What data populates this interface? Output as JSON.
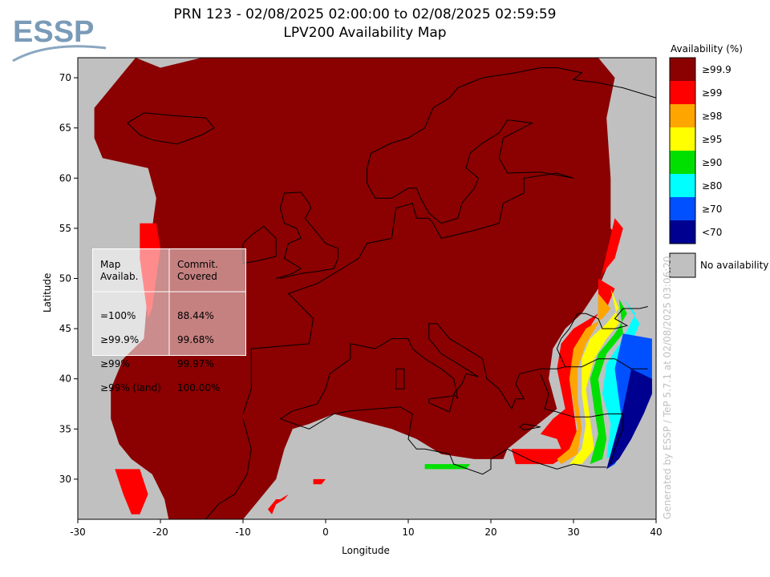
{
  "logo": {
    "text": "ESSP"
  },
  "title": {
    "line1": "PRN 123 - 02/08/2025 02:00:00 to 02/08/2025 02:59:59",
    "line2": "LPV200 Availability Map"
  },
  "watermark": "Generated by ESSP / TeP 5.7.1 at 02/08/2025 03:06:20",
  "stats_table": {
    "col1_header": "Map\nAvailab.",
    "col2_header": "Commit.\nCovered",
    "rows": [
      {
        "label": "=100%",
        "value": "88.44%"
      },
      {
        "label": "≥99.9%",
        "value": "99.68%"
      },
      {
        "label": "≥99%",
        "value": "99.97%"
      },
      {
        "label": "≥99% (land)",
        "value": "100.00%"
      }
    ]
  },
  "legend": {
    "title": "Availability (%)",
    "items": [
      {
        "label": "≥99.9",
        "color": "#8b0000"
      },
      {
        "label": "≥99",
        "color": "#ff0000"
      },
      {
        "label": "≥98",
        "color": "#ffa500"
      },
      {
        "label": "≥95",
        "color": "#ffff00"
      },
      {
        "label": "≥90",
        "color": "#00e000"
      },
      {
        "label": "≥80",
        "color": "#00ffff"
      },
      {
        "label": "≥70",
        "color": "#0050ff"
      },
      {
        "label": "<70",
        "color": "#000090"
      }
    ],
    "no_availability": {
      "label": "No availability",
      "color": "#c0c0c0"
    }
  },
  "chart_data": {
    "type": "heatmap",
    "title": "PRN 123 - 02/08/2025 02:00:00 to 02/08/2025 02:59:59",
    "subtitle": "LPV200 Availability Map",
    "xlabel": "Longitude",
    "ylabel": "Latitude",
    "xlim": [
      -30,
      40
    ],
    "ylim": [
      26,
      72
    ],
    "xticks": [
      -30,
      -20,
      -10,
      0,
      10,
      20,
      30,
      40
    ],
    "yticks": [
      30,
      35,
      40,
      45,
      50,
      55,
      60,
      65,
      70
    ],
    "dominant_value": "≥99.9",
    "regions": [
      {
        "category": "≥99.9",
        "lonlat": [
          [
            -23,
            72
          ],
          [
            -20,
            71
          ],
          [
            -15,
            72
          ],
          [
            33,
            72
          ],
          [
            35,
            70
          ],
          [
            34,
            66
          ],
          [
            34.5,
            60
          ],
          [
            34.5,
            55
          ],
          [
            35.5,
            54
          ],
          [
            34,
            51
          ],
          [
            33,
            49
          ],
          [
            31,
            46.5
          ],
          [
            29,
            45
          ],
          [
            27.5,
            43
          ],
          [
            27,
            40
          ],
          [
            28,
            37
          ],
          [
            25,
            35
          ],
          [
            22,
            33
          ],
          [
            21.5,
            32
          ],
          [
            18,
            32
          ],
          [
            14,
            32.5
          ],
          [
            11,
            34
          ],
          [
            8,
            35
          ],
          [
            1,
            36.5
          ],
          [
            -2,
            35.5
          ],
          [
            -4,
            35
          ],
          [
            -5,
            33
          ],
          [
            -6,
            30
          ],
          [
            -8,
            28
          ],
          [
            -10,
            26
          ],
          [
            -19,
            26
          ],
          [
            -19.5,
            28
          ],
          [
            -21,
            30.5
          ],
          [
            -23.5,
            32
          ],
          [
            -25,
            33.5
          ],
          [
            -26,
            36
          ],
          [
            -26,
            39
          ],
          [
            -24.5,
            42
          ],
          [
            -22,
            44
          ],
          [
            -21.5,
            49
          ],
          [
            -21.5,
            51
          ],
          [
            -21,
            55
          ],
          [
            -20.5,
            58
          ],
          [
            -21.5,
            61
          ],
          [
            -27,
            62
          ],
          [
            -28,
            64
          ],
          [
            -28,
            67
          ],
          [
            -26,
            69
          ],
          [
            -24,
            71
          ]
        ]
      },
      {
        "category": "≥99",
        "lonlat": [
          [
            -22.5,
            55.5
          ],
          [
            -20.5,
            55.5
          ],
          [
            -20,
            53
          ],
          [
            -20.5,
            50
          ],
          [
            -21,
            47
          ],
          [
            -21.5,
            46
          ],
          [
            -22,
            49
          ],
          [
            -22.5,
            52
          ]
        ]
      },
      {
        "category": "≥99",
        "lonlat": [
          [
            -25.5,
            31
          ],
          [
            -22.5,
            31
          ],
          [
            -21.5,
            28.5
          ],
          [
            -22.5,
            26.5
          ],
          [
            -23.5,
            26.5
          ],
          [
            -24.5,
            28.5
          ]
        ]
      },
      {
        "category": "≥99",
        "lonlat": [
          [
            35,
            56
          ],
          [
            36,
            55
          ],
          [
            35,
            52
          ],
          [
            33.5,
            50.5
          ],
          [
            33,
            49
          ]
        ]
      },
      {
        "category": "≥99",
        "lonlat": [
          [
            33,
            50
          ],
          [
            35,
            49
          ],
          [
            34,
            47
          ],
          [
            32,
            46
          ],
          [
            30,
            45
          ],
          [
            28.5,
            43.5
          ],
          [
            28,
            41
          ],
          [
            28.5,
            39
          ],
          [
            29,
            37
          ],
          [
            27.5,
            36
          ],
          [
            26,
            34.5
          ],
          [
            28,
            34
          ],
          [
            28.5,
            33
          ],
          [
            22.5,
            33
          ],
          [
            23,
            31.5
          ],
          [
            27.5,
            31.5
          ],
          [
            29.5,
            32.5
          ],
          [
            30.5,
            34
          ],
          [
            30,
            37
          ],
          [
            29.5,
            40
          ],
          [
            30,
            42.5
          ],
          [
            31.5,
            44.5
          ],
          [
            33,
            46.5
          ]
        ]
      },
      {
        "category": "≥98",
        "lonlat": [
          [
            33,
            48.5
          ],
          [
            34.5,
            47
          ],
          [
            33.5,
            46
          ],
          [
            31.5,
            45
          ],
          [
            30,
            43
          ],
          [
            29.5,
            40
          ],
          [
            30,
            37.5
          ],
          [
            30.5,
            35
          ],
          [
            29.5,
            33
          ],
          [
            28,
            32
          ],
          [
            28.5,
            31.5
          ],
          [
            30.5,
            32.5
          ],
          [
            31,
            35
          ],
          [
            30.5,
            38
          ],
          [
            30.5,
            41
          ],
          [
            31.5,
            43.5
          ],
          [
            33,
            45.5
          ]
        ]
      },
      {
        "category": "≥95",
        "lonlat": [
          [
            34.5,
            49
          ],
          [
            35.5,
            47
          ],
          [
            34,
            45.5
          ],
          [
            32,
            44
          ],
          [
            31,
            42
          ],
          [
            31,
            38.5
          ],
          [
            31.5,
            35.5
          ],
          [
            31,
            33
          ],
          [
            29.5,
            31.5
          ],
          [
            31,
            31.5
          ],
          [
            32.5,
            33
          ],
          [
            32,
            36
          ],
          [
            31.5,
            39
          ],
          [
            32.5,
            42
          ],
          [
            34,
            44
          ],
          [
            35.5,
            45.5
          ]
        ]
      },
      {
        "category": "≥90",
        "lonlat": [
          [
            35.5,
            48
          ],
          [
            36.5,
            46.5
          ],
          [
            35,
            44.5
          ],
          [
            33,
            42.5
          ],
          [
            32,
            40
          ],
          [
            32.5,
            37
          ],
          [
            33,
            34.5
          ],
          [
            32,
            31.5
          ],
          [
            33.5,
            32
          ],
          [
            34,
            34
          ],
          [
            33.5,
            37
          ],
          [
            33,
            40
          ],
          [
            34,
            42.5
          ],
          [
            36,
            44.5
          ]
        ]
      },
      {
        "category": "≥80",
        "lonlat": [
          [
            36,
            48
          ],
          [
            37.5,
            46.5
          ],
          [
            36,
            44
          ],
          [
            34,
            41.5
          ],
          [
            33.5,
            38.5
          ],
          [
            34.5,
            35.5
          ],
          [
            34,
            32
          ],
          [
            35.5,
            33
          ],
          [
            36.5,
            35.5
          ],
          [
            35.5,
            38
          ],
          [
            35.5,
            41
          ],
          [
            37,
            43.5
          ],
          [
            38,
            45.5
          ]
        ]
      },
      {
        "category": "≥70",
        "lonlat": [
          [
            36,
            44.5
          ],
          [
            39.5,
            44
          ],
          [
            39.5,
            38.5
          ],
          [
            38,
            36
          ],
          [
            36.5,
            33.5
          ],
          [
            35,
            31.5
          ],
          [
            34,
            31
          ],
          [
            36,
            35
          ],
          [
            35.5,
            38
          ],
          [
            35,
            41
          ]
        ]
      },
      {
        "category": "<70",
        "lonlat": [
          [
            37,
            41
          ],
          [
            39.5,
            40
          ],
          [
            39.5,
            38.5
          ],
          [
            38.5,
            36.5
          ],
          [
            37,
            34
          ],
          [
            35.5,
            32
          ],
          [
            34,
            31
          ],
          [
            35,
            34
          ],
          [
            36,
            37
          ]
        ]
      },
      {
        "category": "≥99",
        "lonlat": [
          [
            -6,
            28
          ],
          [
            -5.5,
            28
          ],
          [
            -4.5,
            28.5
          ],
          [
            -5,
            28
          ],
          [
            -6,
            27.5
          ],
          [
            -6.5,
            26.5
          ],
          [
            -7,
            27
          ]
        ]
      },
      {
        "category": "≥99",
        "lonlat": [
          [
            -1.5,
            30
          ],
          [
            0,
            30
          ],
          [
            -0.5,
            29.5
          ],
          [
            -1.5,
            29.5
          ]
        ]
      },
      {
        "category": "≥90",
        "lonlat": [
          [
            12,
            31.5
          ],
          [
            17.5,
            31.5
          ],
          [
            17,
            31
          ],
          [
            12,
            31
          ]
        ]
      }
    ],
    "legend_position": "right",
    "grid": false
  }
}
